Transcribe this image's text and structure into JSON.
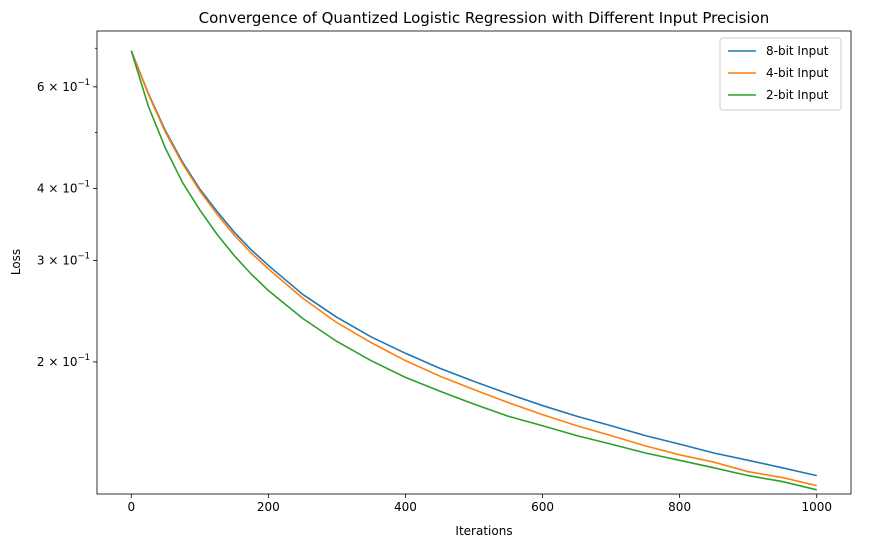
{
  "chart_data": {
    "type": "line",
    "title": "Convergence of Quantized Logistic Regression with Different Input Precision",
    "xlabel": "Iterations",
    "ylabel": "Loss",
    "y_scale": "log",
    "xlim": [
      -50,
      1050
    ],
    "ylim": [
      0.118,
      0.75
    ],
    "x_ticks": [
      0,
      200,
      400,
      600,
      800,
      1000
    ],
    "x_tick_labels": [
      "0",
      "200",
      "400",
      "600",
      "800",
      "1000"
    ],
    "y_major_ticks": [
      0.2,
      0.3,
      0.4,
      0.6
    ],
    "y_major_tick_labels": [
      {
        "base": "2",
        "exp": "−1"
      },
      {
        "base": "3",
        "exp": "−1"
      },
      {
        "base": "4",
        "exp": "−1"
      },
      {
        "base": "6",
        "exp": "−1"
      }
    ],
    "y_minor_ticks": [
      0.5,
      0.7
    ],
    "grid": false,
    "legend_position": "upper-right",
    "x": [
      0,
      25,
      50,
      75,
      100,
      125,
      150,
      175,
      200,
      250,
      300,
      350,
      400,
      450,
      500,
      550,
      600,
      650,
      700,
      750,
      800,
      850,
      900,
      950,
      1000
    ],
    "series": [
      {
        "name": "8-bit Input",
        "color": "#1f77b4",
        "values": [
          0.693,
          0.584,
          0.503,
          0.444,
          0.399,
          0.365,
          0.336,
          0.313,
          0.294,
          0.262,
          0.239,
          0.221,
          0.207,
          0.195,
          0.185,
          0.176,
          0.168,
          0.161,
          0.155,
          0.149,
          0.144,
          0.139,
          0.135,
          0.131,
          0.127
        ]
      },
      {
        "name": "4-bit Input",
        "color": "#ff7f0e",
        "values": [
          0.693,
          0.582,
          0.5,
          0.441,
          0.396,
          0.361,
          0.332,
          0.309,
          0.29,
          0.258,
          0.234,
          0.216,
          0.201,
          0.189,
          0.179,
          0.17,
          0.162,
          0.155,
          0.149,
          0.143,
          0.138,
          0.134,
          0.129,
          0.126,
          0.122
        ]
      },
      {
        "name": "2-bit Input",
        "color": "#2ca02c",
        "values": [
          0.693,
          0.555,
          0.469,
          0.409,
          0.367,
          0.333,
          0.306,
          0.284,
          0.266,
          0.238,
          0.217,
          0.201,
          0.188,
          0.178,
          0.169,
          0.161,
          0.155,
          0.149,
          0.144,
          0.139,
          0.135,
          0.131,
          0.127,
          0.124,
          0.12
        ]
      }
    ]
  }
}
